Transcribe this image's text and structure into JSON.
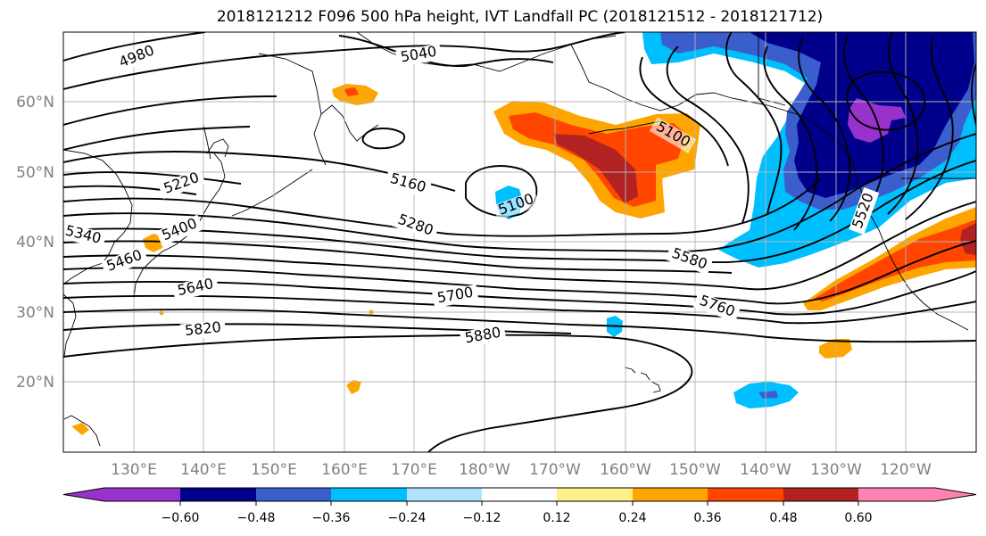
{
  "title": "2018121212 F096 500 hPa height, IVT Landfall PC (2018121512 - 2018121712)",
  "lat_labels": [
    "60°N",
    "50°N",
    "40°N",
    "30°N",
    "20°N"
  ],
  "lon_labels": [
    "130°E",
    "140°E",
    "150°E",
    "160°E",
    "170°E",
    "180°W",
    "170°W",
    "160°W",
    "150°W",
    "140°W",
    "130°W",
    "120°W"
  ],
  "contour_labels": [
    "4980",
    "5040",
    "5100",
    "5100",
    "5160",
    "5220",
    "5280",
    "5340",
    "5400",
    "5460",
    "5520",
    "5580",
    "5640",
    "5700",
    "5760",
    "5820",
    "5880"
  ],
  "colorbar": {
    "colors": [
      "#9932cc",
      "#00008b",
      "#3a5fcd",
      "#00bfff",
      "#b0e2ff",
      "#ffffff",
      "#fff08a",
      "#ffa500",
      "#ff4500",
      "#b22222",
      "#ff83b2"
    ],
    "tick_labels": [
      "−0.60",
      "−0.48",
      "−0.36",
      "−0.24",
      "−0.12",
      "0.12",
      "0.24",
      "0.36",
      "0.48",
      "0.60"
    ]
  },
  "colors": {
    "contour": "#000000",
    "coast": "#000000",
    "grid": "#b4b4b4",
    "axis_label": "#808080"
  }
}
